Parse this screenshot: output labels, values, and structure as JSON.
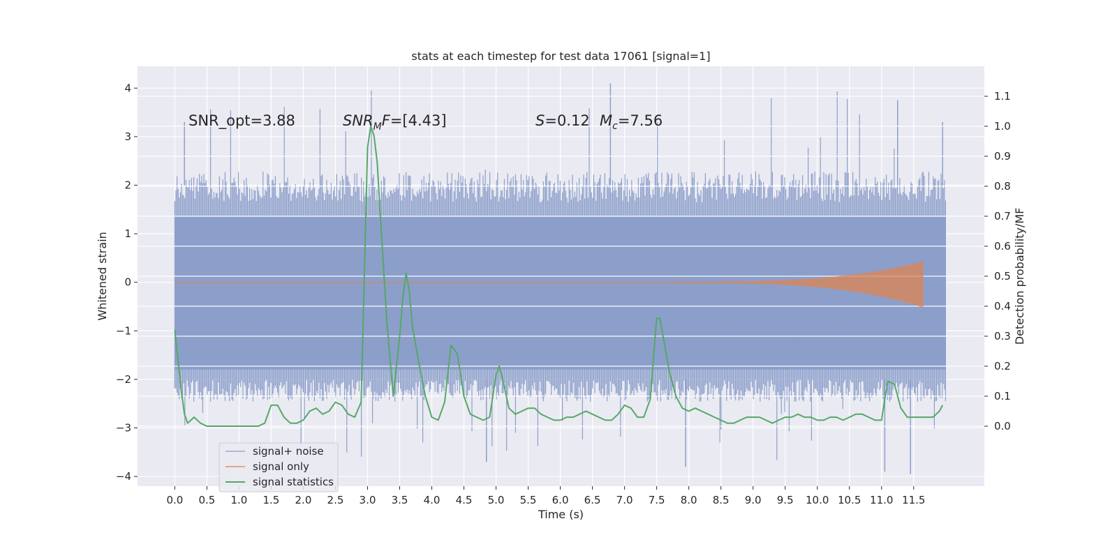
{
  "chart_data": {
    "type": "line",
    "title": "stats at each timestep for test data 17061 [signal=1]",
    "xlabel": "Time (s)",
    "ylabel_left": "Whitened strain",
    "ylabel_right": "Detection probability/MF",
    "xlim": [
      -0.58,
      12.6
    ],
    "ylim_left": [
      -4.2,
      4.45
    ],
    "ylim_right": [
      -0.2,
      1.2
    ],
    "x_ticks": [
      0.0,
      0.5,
      1.0,
      1.5,
      2.0,
      2.5,
      3.0,
      3.5,
      4.0,
      4.5,
      5.0,
      5.5,
      6.0,
      6.5,
      7.0,
      7.5,
      8.0,
      8.5,
      9.0,
      9.5,
      10.0,
      10.5,
      11.0,
      11.5
    ],
    "x_tick_labels": [
      "0.0",
      "0.5",
      "1.0",
      "1.5",
      "2.0",
      "2.5",
      "3.0",
      "3.5",
      "4.0",
      "4.5",
      "5.0",
      "5.5",
      "6.0",
      "6.5",
      "7.0",
      "7.5",
      "8.0",
      "8.5",
      "9.0",
      "9.5",
      "10.0",
      "10.5",
      "11.0",
      "11.5"
    ],
    "y_left_ticks": [
      -4,
      -3,
      -2,
      -1,
      0,
      1,
      2,
      3,
      4
    ],
    "y_left_tick_labels": [
      "−4",
      "−3",
      "−2",
      "−1",
      "0",
      "1",
      "2",
      "3",
      "4"
    ],
    "y_right_ticks": [
      0.0,
      0.1,
      0.2,
      0.3,
      0.4,
      0.5,
      0.6,
      0.7,
      0.8,
      0.9,
      1.0,
      1.1
    ],
    "y_right_tick_labels": [
      "0.0",
      "0.1",
      "0.2",
      "0.3",
      "0.4",
      "0.5",
      "0.6",
      "0.7",
      "0.8",
      "0.9",
      "1.0",
      "1.1"
    ],
    "grid": true,
    "background": "#EAEAF2",
    "legend_position": "lower-left",
    "annotations": {
      "snr_opt": "SNR_opt=3.88",
      "snr_mf_italic": "SNR",
      "snr_mf_sub": "M",
      "snr_mf_italic2": "F",
      "snr_mf_value": "=[4.43]",
      "s_symbol": "S",
      "s_value": "=0.12",
      "mc_symbol": "M",
      "mc_sub": "c",
      "mc_value": "=7.56"
    },
    "series": [
      {
        "name": "signal+ noise",
        "axis": "left",
        "color": "#8C9FCA",
        "kind": "noise_band",
        "x_range": [
          0.0,
          12.0
        ],
        "core_range": [
          -1.8,
          1.35
        ],
        "typical_peaks": [
          2.2,
          -2.4
        ],
        "max": 4.1,
        "min": -3.9
      },
      {
        "name": "signal only",
        "axis": "left",
        "color": "#DD8452",
        "kind": "chirp",
        "start_x": 7.8,
        "end_x": 11.65,
        "max_amplitude": 0.42
      },
      {
        "name": "signal statistics",
        "axis": "right",
        "color": "#55A868",
        "kind": "line",
        "x": [
          0.0,
          0.05,
          0.1,
          0.15,
          0.2,
          0.3,
          0.4,
          0.5,
          0.6,
          0.7,
          0.8,
          0.9,
          1.0,
          1.1,
          1.2,
          1.3,
          1.4,
          1.5,
          1.6,
          1.7,
          1.8,
          1.9,
          2.0,
          2.1,
          2.2,
          2.3,
          2.4,
          2.5,
          2.6,
          2.7,
          2.8,
          2.9,
          3.0,
          3.05,
          3.1,
          3.15,
          3.2,
          3.3,
          3.4,
          3.5,
          3.55,
          3.6,
          3.65,
          3.7,
          3.8,
          3.9,
          4.0,
          4.1,
          4.2,
          4.3,
          4.4,
          4.5,
          4.6,
          4.7,
          4.8,
          4.9,
          5.0,
          5.05,
          5.1,
          5.2,
          5.3,
          5.4,
          5.5,
          5.6,
          5.7,
          5.8,
          5.9,
          6.0,
          6.1,
          6.2,
          6.3,
          6.4,
          6.5,
          6.6,
          6.7,
          6.8,
          6.9,
          7.0,
          7.1,
          7.2,
          7.3,
          7.4,
          7.5,
          7.55,
          7.6,
          7.7,
          7.8,
          7.9,
          8.0,
          8.1,
          8.2,
          8.3,
          8.4,
          8.5,
          8.6,
          8.7,
          8.8,
          8.9,
          9.0,
          9.1,
          9.2,
          9.3,
          9.4,
          9.5,
          9.6,
          9.7,
          9.8,
          9.9,
          10.0,
          10.1,
          10.2,
          10.3,
          10.4,
          10.5,
          10.6,
          10.7,
          10.8,
          10.9,
          11.0,
          11.05,
          11.1,
          11.2,
          11.3,
          11.4,
          11.5,
          11.6,
          11.7,
          11.8,
          11.9,
          11.95
        ],
        "y": [
          0.32,
          0.22,
          0.12,
          0.04,
          0.01,
          0.03,
          0.01,
          0.0,
          0.0,
          0.0,
          0.0,
          0.0,
          0.0,
          0.0,
          0.0,
          0.0,
          0.01,
          0.07,
          0.07,
          0.03,
          0.01,
          0.01,
          0.02,
          0.05,
          0.06,
          0.04,
          0.05,
          0.08,
          0.07,
          0.04,
          0.03,
          0.08,
          0.93,
          1.0,
          0.97,
          0.88,
          0.7,
          0.35,
          0.1,
          0.3,
          0.43,
          0.51,
          0.45,
          0.33,
          0.21,
          0.1,
          0.03,
          0.02,
          0.08,
          0.27,
          0.24,
          0.1,
          0.04,
          0.03,
          0.02,
          0.03,
          0.17,
          0.2,
          0.16,
          0.06,
          0.04,
          0.05,
          0.06,
          0.06,
          0.04,
          0.03,
          0.02,
          0.02,
          0.03,
          0.03,
          0.04,
          0.05,
          0.04,
          0.03,
          0.02,
          0.02,
          0.04,
          0.07,
          0.06,
          0.03,
          0.03,
          0.09,
          0.36,
          0.36,
          0.3,
          0.18,
          0.1,
          0.06,
          0.05,
          0.06,
          0.05,
          0.04,
          0.03,
          0.02,
          0.01,
          0.01,
          0.02,
          0.03,
          0.03,
          0.03,
          0.02,
          0.01,
          0.02,
          0.03,
          0.03,
          0.04,
          0.03,
          0.03,
          0.02,
          0.02,
          0.03,
          0.03,
          0.02,
          0.03,
          0.04,
          0.04,
          0.03,
          0.02,
          0.02,
          0.09,
          0.15,
          0.14,
          0.06,
          0.03,
          0.03,
          0.03,
          0.03,
          0.03,
          0.05,
          0.07
        ]
      }
    ]
  }
}
